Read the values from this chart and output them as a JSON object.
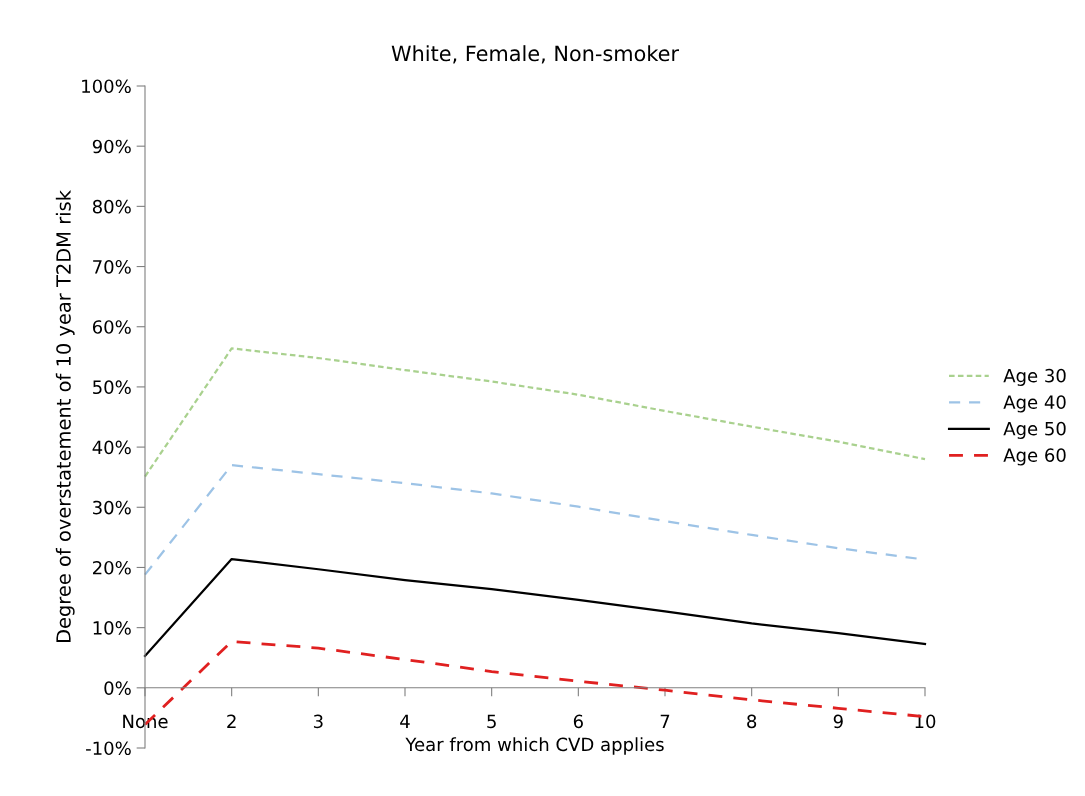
{
  "chart_data": {
    "type": "line",
    "title": "White, Female, Non-smoker",
    "xlabel": "Year from which CVD applies",
    "ylabel": "Degree of overstatement of 10 year T2DM risk",
    "categories": [
      "None",
      "2",
      "3",
      "4",
      "5",
      "6",
      "7",
      "8",
      "9",
      "10"
    ],
    "series": [
      {
        "name": "Age 30",
        "color": "#a9d18e",
        "line_style": "dotted",
        "values": [
          35.1,
          56.4,
          54.8,
          52.8,
          50.9,
          48.7,
          46.0,
          43.4,
          40.9,
          38.0
        ]
      },
      {
        "name": "Age 40",
        "color": "#9dc3e6",
        "line_style": "dashed",
        "values": [
          18.8,
          37.0,
          35.5,
          34.0,
          32.3,
          30.1,
          27.7,
          25.4,
          23.2,
          21.3
        ]
      },
      {
        "name": "Age 50",
        "color": "#000000",
        "line_style": "solid",
        "values": [
          5.3,
          21.4,
          19.7,
          17.9,
          16.4,
          14.6,
          12.7,
          10.7,
          9.1,
          7.3
        ]
      },
      {
        "name": "Age 60",
        "color": "#e02020",
        "line_style": "dashed",
        "values": [
          -6.1,
          7.7,
          6.6,
          4.7,
          2.7,
          1.1,
          -0.4,
          -2.0,
          -3.4,
          -4.8
        ]
      }
    ],
    "ylim": [
      -10,
      100
    ],
    "yticks": [
      {
        "value": -10,
        "label": "-10%"
      },
      {
        "value": 0,
        "label": "0%"
      },
      {
        "value": 10,
        "label": "10%"
      },
      {
        "value": 20,
        "label": "20%"
      },
      {
        "value": 30,
        "label": "30%"
      },
      {
        "value": 40,
        "label": "40%"
      },
      {
        "value": 50,
        "label": "50%"
      },
      {
        "value": 60,
        "label": "60%"
      },
      {
        "value": 70,
        "label": "70%"
      },
      {
        "value": 80,
        "label": "80%"
      },
      {
        "value": 90,
        "label": "90%"
      },
      {
        "value": 100,
        "label": "100%"
      }
    ],
    "grid": false,
    "legend": "right",
    "marker": "none"
  }
}
